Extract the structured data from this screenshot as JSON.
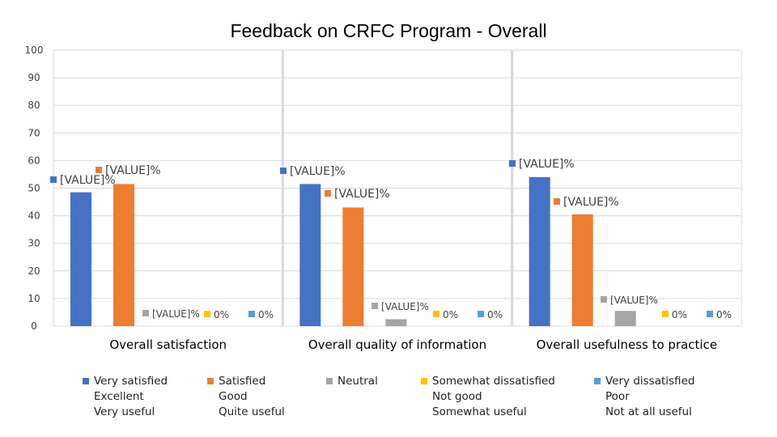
{
  "chart_data": {
    "type": "bar",
    "title": "Feedback on CRFC Program - Overall",
    "categories": [
      "Overall satisfaction",
      "Overall quality of information",
      "Overall usefulness to practice"
    ],
    "ylim": [
      0,
      100
    ],
    "yticks": [
      0,
      10,
      20,
      30,
      40,
      50,
      60,
      70,
      80,
      90,
      100
    ],
    "grid": true,
    "legend_position": "bottom",
    "series": [
      {
        "name": "Very satisfied / Excellent / Very useful",
        "color": "#4472C4",
        "values": [
          48.5,
          51.5,
          54
        ],
        "labels": [
          "[VALUE]%",
          "[VALUE]%",
          "[VALUE]%"
        ]
      },
      {
        "name": "Satisfied / Good / Quite useful",
        "color": "#ED7D31",
        "values": [
          51.5,
          43,
          40.5
        ],
        "labels": [
          "[VALUE]%",
          "[VALUE]%",
          "[VALUE]%"
        ]
      },
      {
        "name": "Neutral",
        "color": "#A5A5A5",
        "values": [
          0,
          2.5,
          5.5
        ],
        "labels": [
          "[VALUE]%",
          "[VALUE]%",
          "[VALUE]%"
        ]
      },
      {
        "name": "Somewhat dissatisfied / Not good / Somewhat useful",
        "color": "#FFC000",
        "values": [
          0,
          0,
          0
        ],
        "labels": [
          "0%",
          "0%",
          "0%"
        ]
      },
      {
        "name": "Very dissatisfied / Poor / Not at all useful",
        "color": "#5B9BD5",
        "values": [
          0,
          0,
          0
        ],
        "labels": [
          "0%",
          "0%",
          "0%"
        ]
      }
    ]
  },
  "legend": [
    {
      "color": "#4472C4",
      "lines": [
        "Very satisfied",
        "Excellent",
        "Very useful"
      ]
    },
    {
      "color": "#ED7D31",
      "lines": [
        "Satisfied",
        "Good",
        "Quite useful"
      ]
    },
    {
      "color": "#A5A5A5",
      "lines": [
        "Neutral"
      ]
    },
    {
      "color": "#FFC000",
      "lines": [
        "Somewhat dissatisfied",
        "Not good",
        "Somewhat useful"
      ]
    },
    {
      "color": "#5B9BD5",
      "lines": [
        "Very dissatisfied",
        "Poor",
        "Not at all useful"
      ]
    }
  ]
}
